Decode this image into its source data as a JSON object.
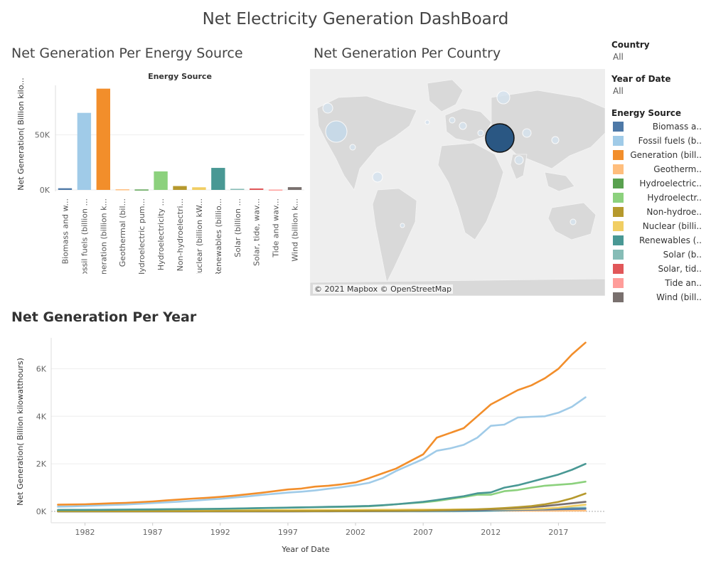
{
  "dashboard": {
    "title": "Net Electricity  Generation DashBoard"
  },
  "colors": {
    "biomass": "#4e79a7",
    "fossil": "#a0cbe8",
    "generation": "#f28e2b",
    "geothermal": "#ffbe7d",
    "hydro_pumped": "#59a14f",
    "hydroelectricity": "#8cd17d",
    "non_hydro": "#b6992d",
    "nuclear": "#f1ce63",
    "renewables": "#499894",
    "solar": "#86bcb6",
    "solar_tide": "#e15759",
    "tide": "#ff9d9a",
    "wind": "#79706e"
  },
  "chart_data": [
    {
      "type": "bar",
      "title": "Net Generation Per Energy Source",
      "header": "Energy Source",
      "ylabel": "Net Generation( Billion kilo...",
      "categories": [
        "Biomass and w...",
        "Fossil fuels (billion ...",
        "Generation (billion k...",
        "Geothermal (bil...",
        "Hydroelectric pum...",
        "Hydroelectricity ...",
        "Non-hydroelectri...",
        "Nuclear (billion kW...",
        "Renewables (billio...",
        "Solar (billion ...",
        "Solar, tide, wav...",
        "Tide and wav...",
        "Wind (billion k..."
      ],
      "values": [
        1500,
        70000,
        92000,
        600,
        400,
        16800,
        3500,
        2400,
        20000,
        1000,
        1300,
        300,
        2500
      ],
      "yticks": [
        0,
        50000
      ],
      "ytick_labels": [
        "0K",
        "50K"
      ],
      "ylim": [
        0,
        95000
      ],
      "grid": true
    },
    {
      "type": "line",
      "title": "Net Generation Per Year",
      "xlabel": "Year of Date",
      "ylabel": "Net Generation( Billion kilowatthours)",
      "xticks": [
        1982,
        1987,
        1992,
        1997,
        2002,
        2007,
        2012,
        2017
      ],
      "yticks": [
        0,
        2000,
        4000,
        6000
      ],
      "ytick_labels": [
        "0K",
        "2K",
        "4K",
        "6K"
      ],
      "xlim": [
        1979.5,
        2020.5
      ],
      "ylim": [
        0,
        7300
      ],
      "grid": true,
      "x": [
        1980,
        1981,
        1982,
        1983,
        1984,
        1985,
        1986,
        1987,
        1988,
        1989,
        1990,
        1991,
        1992,
        1993,
        1994,
        1995,
        1996,
        1997,
        1998,
        1999,
        2000,
        2001,
        2002,
        2003,
        2004,
        2005,
        2006,
        2007,
        2008,
        2009,
        2010,
        2011,
        2012,
        2013,
        2014,
        2015,
        2016,
        2017,
        2018,
        2019
      ],
      "series": [
        {
          "color_key": "generation",
          "values": [
            280,
            290,
            300,
            320,
            340,
            360,
            390,
            420,
            460,
            500,
            540,
            570,
            610,
            660,
            720,
            780,
            850,
            920,
            960,
            1040,
            1080,
            1140,
            1220,
            1400,
            1600,
            1800,
            2100,
            2400,
            3100,
            3300,
            3500,
            4000,
            4500,
            4800,
            5100,
            5300,
            5600,
            6000,
            6600,
            7100
          ]
        },
        {
          "color_key": "fossil",
          "values": [
            200,
            210,
            230,
            250,
            270,
            290,
            320,
            350,
            380,
            410,
            450,
            490,
            530,
            580,
            630,
            690,
            740,
            790,
            830,
            880,
            950,
            1020,
            1100,
            1200,
            1400,
            1700,
            1950,
            2200,
            2550,
            2650,
            2800,
            3100,
            3600,
            3650,
            3950,
            3980,
            4000,
            4150,
            4400,
            4800
          ]
        },
        {
          "color_key": "renewables",
          "values": [
            60,
            62,
            64,
            66,
            70,
            75,
            80,
            85,
            90,
            95,
            100,
            105,
            110,
            120,
            130,
            140,
            150,
            160,
            170,
            180,
            190,
            200,
            215,
            230,
            260,
            300,
            350,
            400,
            480,
            560,
            640,
            760,
            800,
            1000,
            1100,
            1250,
            1400,
            1550,
            1750,
            2000
          ]
        },
        {
          "color_key": "hydroelectricity",
          "values": [
            60,
            62,
            64,
            66,
            70,
            74,
            78,
            82,
            86,
            90,
            95,
            100,
            105,
            115,
            125,
            135,
            145,
            155,
            165,
            175,
            180,
            190,
            200,
            215,
            250,
            300,
            340,
            380,
            440,
            520,
            600,
            700,
            700,
            850,
            900,
            1000,
            1080,
            1120,
            1160,
            1250
          ]
        },
        {
          "color_key": "non_hydro",
          "values": [
            5,
            5,
            5,
            6,
            6,
            7,
            7,
            8,
            8,
            9,
            10,
            10,
            11,
            12,
            13,
            14,
            15,
            16,
            17,
            18,
            20,
            22,
            24,
            26,
            28,
            30,
            35,
            40,
            50,
            60,
            75,
            90,
            110,
            140,
            180,
            220,
            300,
            400,
            550,
            750
          ]
        },
        {
          "color_key": "wind",
          "values": [
            0,
            0,
            0,
            0,
            0,
            0,
            0,
            0,
            0,
            0,
            1,
            1,
            1,
            1,
            2,
            2,
            3,
            3,
            4,
            5,
            6,
            8,
            10,
            12,
            15,
            20,
            25,
            30,
            40,
            50,
            60,
            70,
            90,
            120,
            150,
            180,
            220,
            280,
            340,
            400
          ]
        },
        {
          "color_key": "nuclear",
          "values": [
            20,
            22,
            24,
            26,
            28,
            30,
            32,
            34,
            36,
            38,
            40,
            42,
            44,
            46,
            48,
            50,
            52,
            54,
            56,
            58,
            60,
            62,
            64,
            66,
            68,
            70,
            72,
            74,
            76,
            78,
            80,
            82,
            84,
            86,
            90,
            100,
            120,
            160,
            220,
            280
          ]
        },
        {
          "color_key": "biomass",
          "values": [
            2,
            2,
            2,
            2,
            3,
            3,
            3,
            3,
            4,
            4,
            4,
            5,
            5,
            5,
            6,
            6,
            7,
            7,
            8,
            8,
            9,
            10,
            12,
            14,
            16,
            18,
            20,
            22,
            26,
            30,
            36,
            42,
            50,
            56,
            64,
            72,
            80,
            90,
            100,
            110
          ]
        },
        {
          "color_key": "solar",
          "values": [
            0,
            0,
            0,
            0,
            0,
            0,
            0,
            0,
            0,
            0,
            0,
            0,
            0,
            0,
            0,
            0,
            0,
            0,
            0,
            0,
            0,
            0,
            0,
            0,
            0,
            0,
            1,
            1,
            2,
            3,
            5,
            10,
            20,
            40,
            60,
            80,
            100,
            120,
            140,
            160
          ]
        },
        {
          "color_key": "geothermal",
          "values": [
            10,
            10,
            11,
            11,
            12,
            12,
            13,
            13,
            14,
            14,
            15,
            15,
            16,
            16,
            17,
            17,
            18,
            18,
            19,
            19,
            20,
            20,
            21,
            21,
            22,
            22,
            23,
            23,
            24,
            24,
            25,
            25,
            26,
            26,
            27,
            27,
            28,
            28,
            29,
            30
          ]
        }
      ]
    }
  ],
  "bar_chart_title": "Net Generation Per Energy Source",
  "map": {
    "title": "Net Generation Per Country",
    "credit": "© 2021 Mapbox © OpenStreetMap"
  },
  "line_chart_title": "Net Generation Per Year",
  "filters": {
    "country": {
      "title": "Country",
      "value": "All"
    },
    "year": {
      "title": "Year of Date",
      "value": "All"
    }
  },
  "legend": {
    "title": "Energy Source",
    "items": [
      {
        "label": "Biomass a..",
        "color_key": "biomass"
      },
      {
        "label": "Fossil fuels (b..",
        "color_key": "fossil"
      },
      {
        "label": "Generation (bill..",
        "color_key": "generation"
      },
      {
        "label": "Geotherm..",
        "color_key": "geothermal"
      },
      {
        "label": "Hydroelectric..",
        "color_key": "hydro_pumped"
      },
      {
        "label": "Hydroelectr..",
        "color_key": "hydroelectricity"
      },
      {
        "label": "Non-hydroe..",
        "color_key": "non_hydro"
      },
      {
        "label": "Nuclear (billi..",
        "color_key": "nuclear"
      },
      {
        "label": "Renewables (..",
        "color_key": "renewables"
      },
      {
        "label": "Solar (b..",
        "color_key": "solar"
      },
      {
        "label": "Solar, tid..",
        "color_key": "solar_tide"
      },
      {
        "label": "Tide an..",
        "color_key": "tide"
      },
      {
        "label": "Wind (bill..",
        "color_key": "wind"
      }
    ]
  }
}
